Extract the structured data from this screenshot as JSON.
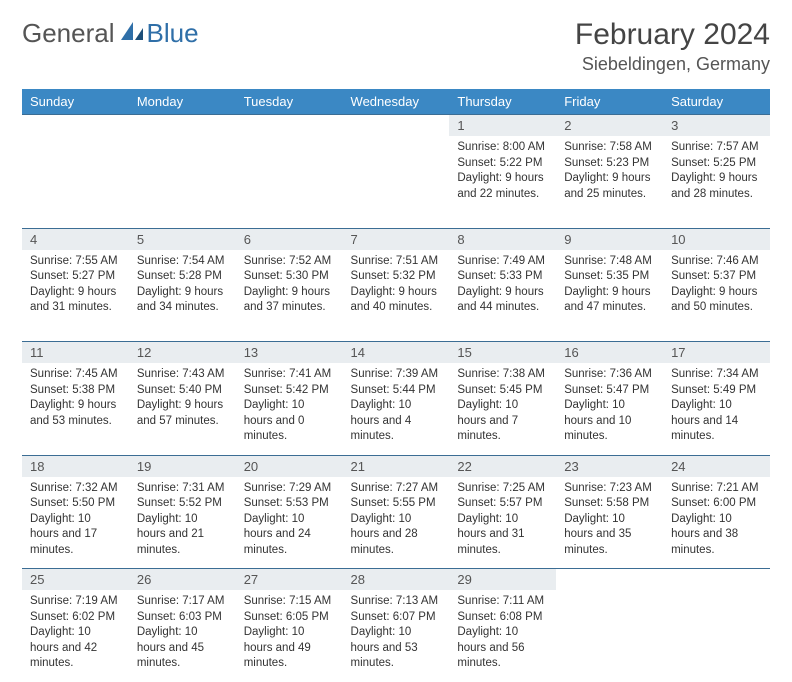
{
  "logo": {
    "text1": "General",
    "text2": "Blue"
  },
  "title": "February 2024",
  "location": "Siebeldingen, Germany",
  "colors": {
    "header_bg": "#3b88c4",
    "header_text": "#ffffff",
    "daynum_bg": "#e9edf0",
    "row_divider": "#3b6d94",
    "logo_blue": "#2f6fa8"
  },
  "dayHeaders": [
    "Sunday",
    "Monday",
    "Tuesday",
    "Wednesday",
    "Thursday",
    "Friday",
    "Saturday"
  ],
  "weeks": [
    [
      null,
      null,
      null,
      null,
      {
        "d": "1",
        "sr": "8:00 AM",
        "ss": "5:22 PM",
        "dl": "9 hours and 22 minutes."
      },
      {
        "d": "2",
        "sr": "7:58 AM",
        "ss": "5:23 PM",
        "dl": "9 hours and 25 minutes."
      },
      {
        "d": "3",
        "sr": "7:57 AM",
        "ss": "5:25 PM",
        "dl": "9 hours and 28 minutes."
      }
    ],
    [
      {
        "d": "4",
        "sr": "7:55 AM",
        "ss": "5:27 PM",
        "dl": "9 hours and 31 minutes."
      },
      {
        "d": "5",
        "sr": "7:54 AM",
        "ss": "5:28 PM",
        "dl": "9 hours and 34 minutes."
      },
      {
        "d": "6",
        "sr": "7:52 AM",
        "ss": "5:30 PM",
        "dl": "9 hours and 37 minutes."
      },
      {
        "d": "7",
        "sr": "7:51 AM",
        "ss": "5:32 PM",
        "dl": "9 hours and 40 minutes."
      },
      {
        "d": "8",
        "sr": "7:49 AM",
        "ss": "5:33 PM",
        "dl": "9 hours and 44 minutes."
      },
      {
        "d": "9",
        "sr": "7:48 AM",
        "ss": "5:35 PM",
        "dl": "9 hours and 47 minutes."
      },
      {
        "d": "10",
        "sr": "7:46 AM",
        "ss": "5:37 PM",
        "dl": "9 hours and 50 minutes."
      }
    ],
    [
      {
        "d": "11",
        "sr": "7:45 AM",
        "ss": "5:38 PM",
        "dl": "9 hours and 53 minutes."
      },
      {
        "d": "12",
        "sr": "7:43 AM",
        "ss": "5:40 PM",
        "dl": "9 hours and 57 minutes."
      },
      {
        "d": "13",
        "sr": "7:41 AM",
        "ss": "5:42 PM",
        "dl": "10 hours and 0 minutes."
      },
      {
        "d": "14",
        "sr": "7:39 AM",
        "ss": "5:44 PM",
        "dl": "10 hours and 4 minutes."
      },
      {
        "d": "15",
        "sr": "7:38 AM",
        "ss": "5:45 PM",
        "dl": "10 hours and 7 minutes."
      },
      {
        "d": "16",
        "sr": "7:36 AM",
        "ss": "5:47 PM",
        "dl": "10 hours and 10 minutes."
      },
      {
        "d": "17",
        "sr": "7:34 AM",
        "ss": "5:49 PM",
        "dl": "10 hours and 14 minutes."
      }
    ],
    [
      {
        "d": "18",
        "sr": "7:32 AM",
        "ss": "5:50 PM",
        "dl": "10 hours and 17 minutes."
      },
      {
        "d": "19",
        "sr": "7:31 AM",
        "ss": "5:52 PM",
        "dl": "10 hours and 21 minutes."
      },
      {
        "d": "20",
        "sr": "7:29 AM",
        "ss": "5:53 PM",
        "dl": "10 hours and 24 minutes."
      },
      {
        "d": "21",
        "sr": "7:27 AM",
        "ss": "5:55 PM",
        "dl": "10 hours and 28 minutes."
      },
      {
        "d": "22",
        "sr": "7:25 AM",
        "ss": "5:57 PM",
        "dl": "10 hours and 31 minutes."
      },
      {
        "d": "23",
        "sr": "7:23 AM",
        "ss": "5:58 PM",
        "dl": "10 hours and 35 minutes."
      },
      {
        "d": "24",
        "sr": "7:21 AM",
        "ss": "6:00 PM",
        "dl": "10 hours and 38 minutes."
      }
    ],
    [
      {
        "d": "25",
        "sr": "7:19 AM",
        "ss": "6:02 PM",
        "dl": "10 hours and 42 minutes."
      },
      {
        "d": "26",
        "sr": "7:17 AM",
        "ss": "6:03 PM",
        "dl": "10 hours and 45 minutes."
      },
      {
        "d": "27",
        "sr": "7:15 AM",
        "ss": "6:05 PM",
        "dl": "10 hours and 49 minutes."
      },
      {
        "d": "28",
        "sr": "7:13 AM",
        "ss": "6:07 PM",
        "dl": "10 hours and 53 minutes."
      },
      {
        "d": "29",
        "sr": "7:11 AM",
        "ss": "6:08 PM",
        "dl": "10 hours and 56 minutes."
      },
      null,
      null
    ]
  ],
  "labels": {
    "sunrise": "Sunrise:",
    "sunset": "Sunset:",
    "daylight": "Daylight:"
  }
}
